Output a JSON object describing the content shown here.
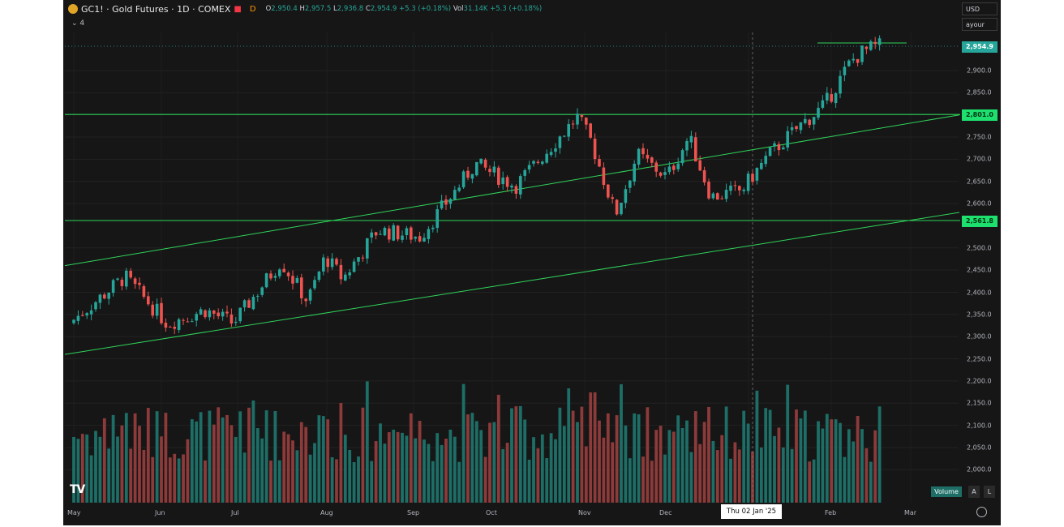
{
  "header": {
    "title": "GC1! · Gold Futures · 1D · COMEX",
    "marker_d": "D",
    "ohlc": [
      {
        "k": "O",
        "v": "2,950.4"
      },
      {
        "k": "H",
        "v": "2,957.5"
      },
      {
        "k": "L",
        "v": "2,936.8"
      },
      {
        "k": "C",
        "v": "2,954.9"
      }
    ],
    "change": "+5.3 (+0.18%)",
    "vol_label": "Vol",
    "vol_value": "31.14K +5.3 (+0.18%)",
    "collapse_count": "4"
  },
  "right_controls": {
    "currency": "USD",
    "unit": "ayour"
  },
  "chart_data": {
    "type": "candlestick",
    "ylim": [
      1960,
      2990
    ],
    "y_ticks": [
      "2,900.0",
      "2,850.0",
      "2,750.0",
      "2,700.0",
      "2,650.0",
      "2,600.0",
      "2,500.0",
      "2,450.0",
      "2,400.0",
      "2,350.0",
      "2,300.0",
      "2,250.0",
      "2,200.0",
      "2,150.0",
      "2,100.0",
      "2,050.0",
      "2,000.0"
    ],
    "x_labels": [
      "May",
      "Jun",
      "Jul",
      "Aug",
      "Sep",
      "Oct",
      "Nov",
      "Dec",
      "Feb",
      "Mar"
    ],
    "last_price": "2,954.9",
    "levels": [
      {
        "value": 2801.0,
        "label": "2,801.0"
      },
      {
        "value": 2561.8,
        "label": "2,561.8"
      }
    ],
    "channel": [
      {
        "x": [
          "May",
          "Mar"
        ],
        "y": [
          2460,
          2800
        ]
      },
      {
        "x": [
          "May",
          "Mar"
        ],
        "y": [
          2260,
          2580
        ]
      }
    ],
    "anchors": [
      {
        "x": "May",
        "y": 2330
      },
      {
        "x": "May 20",
        "y": 2435
      },
      {
        "x": "Jun 5",
        "y": 2330
      },
      {
        "x": "Jun 20",
        "y": 2360
      },
      {
        "x": "Jul 1",
        "y": 2330
      },
      {
        "x": "Jul 17",
        "y": 2470
      },
      {
        "x": "Jul 26",
        "y": 2380
      },
      {
        "x": "Aug 2",
        "y": 2480
      },
      {
        "x": "Aug 8",
        "y": 2430
      },
      {
        "x": "Aug 20",
        "y": 2540
      },
      {
        "x": "Sep 5",
        "y": 2525
      },
      {
        "x": "Sep 20",
        "y": 2640
      },
      {
        "x": "Sep 26",
        "y": 2690
      },
      {
        "x": "Oct 10",
        "y": 2640
      },
      {
        "x": "Oct 30",
        "y": 2795
      },
      {
        "x": "Nov 5",
        "y": 2740
      },
      {
        "x": "Nov 14",
        "y": 2575
      },
      {
        "x": "Nov 22",
        "y": 2710
      },
      {
        "x": "Dec 3",
        "y": 2660
      },
      {
        "x": "Dec 11",
        "y": 2750
      },
      {
        "x": "Dec 19",
        "y": 2615
      },
      {
        "x": "Dec 30",
        "y": 2630
      },
      {
        "x": "Jan 10",
        "y": 2710
      },
      {
        "x": "Jan 22",
        "y": 2780
      },
      {
        "x": "Jan 30",
        "y": 2820
      },
      {
        "x": "Feb 10",
        "y": 2920
      },
      {
        "x": "Feb 14",
        "y": 2940
      },
      {
        "x": "Feb 20",
        "y": 2955
      }
    ],
    "crosshair_label": "Thu 02 Jan '25",
    "volume_label": "Volume"
  }
}
